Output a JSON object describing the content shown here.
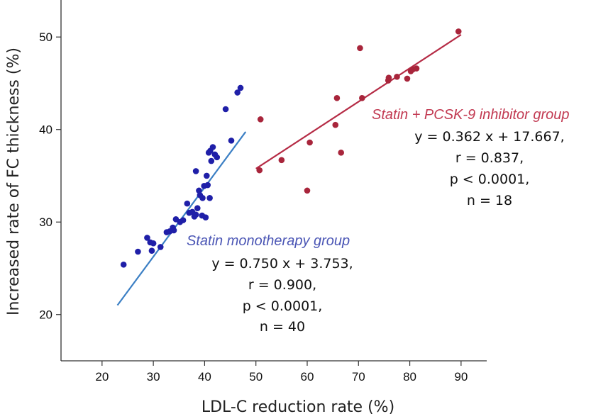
{
  "chart_data": {
    "type": "scatter",
    "xlabel": "LDL-C reduction rate (%)",
    "ylabel": "Increased rate of FC thickness (%)",
    "xlim": [
      12,
      95
    ],
    "ylim": [
      15,
      54
    ],
    "x_ticks": [
      20,
      30,
      40,
      50,
      60,
      70,
      80,
      90
    ],
    "y_ticks": [
      20,
      30,
      40,
      50
    ],
    "grid": false,
    "series": [
      {
        "name": "Statin monotherapy group",
        "color": "#1f1fa8",
        "line_color": "#3b7fc4",
        "fit": {
          "slope": 0.75,
          "intercept": 3.753,
          "x_range": [
            23,
            48
          ]
        },
        "stats": [
          "y = 0.750 x + 3.753,",
          "r = 0.900,",
          "p < 0.0001,",
          "n = 40"
        ],
        "points": [
          {
            "x": 24.2,
            "y": 25.4
          },
          {
            "x": 27.0,
            "y": 26.8
          },
          {
            "x": 28.8,
            "y": 28.3
          },
          {
            "x": 29.4,
            "y": 27.8
          },
          {
            "x": 29.7,
            "y": 26.9
          },
          {
            "x": 30.0,
            "y": 27.7
          },
          {
            "x": 31.4,
            "y": 27.3
          },
          {
            "x": 32.6,
            "y": 28.9
          },
          {
            "x": 33.2,
            "y": 29.0
          },
          {
            "x": 33.8,
            "y": 29.4
          },
          {
            "x": 34.4,
            "y": 30.3
          },
          {
            "x": 35.8,
            "y": 30.2
          },
          {
            "x": 36.6,
            "y": 32.0
          },
          {
            "x": 37.0,
            "y": 31.0
          },
          {
            "x": 37.6,
            "y": 31.1
          },
          {
            "x": 38.0,
            "y": 30.6
          },
          {
            "x": 38.3,
            "y": 30.8
          },
          {
            "x": 38.6,
            "y": 31.5
          },
          {
            "x": 38.3,
            "y": 35.5
          },
          {
            "x": 38.9,
            "y": 33.4
          },
          {
            "x": 39.1,
            "y": 32.9
          },
          {
            "x": 39.6,
            "y": 32.6
          },
          {
            "x": 39.9,
            "y": 33.9
          },
          {
            "x": 40.2,
            "y": 30.5
          },
          {
            "x": 40.6,
            "y": 34.0
          },
          {
            "x": 41.0,
            "y": 32.6
          },
          {
            "x": 40.4,
            "y": 35.0
          },
          {
            "x": 39.5,
            "y": 30.7
          },
          {
            "x": 40.8,
            "y": 37.5
          },
          {
            "x": 41.1,
            "y": 37.7
          },
          {
            "x": 41.6,
            "y": 38.1
          },
          {
            "x": 42.0,
            "y": 37.3
          },
          {
            "x": 42.4,
            "y": 37.0
          },
          {
            "x": 41.3,
            "y": 36.6
          },
          {
            "x": 44.1,
            "y": 42.2
          },
          {
            "x": 45.2,
            "y": 38.8
          },
          {
            "x": 46.4,
            "y": 44.0
          },
          {
            "x": 47.0,
            "y": 44.5
          },
          {
            "x": 35.2,
            "y": 30.0
          },
          {
            "x": 34.0,
            "y": 29.1
          }
        ]
      },
      {
        "name": "Statin + PCSK-9 inhibitor group",
        "color": "#a8253b",
        "line_color": "#b52b45",
        "fit": {
          "slope": 0.362,
          "intercept": 17.667,
          "x_range": [
            50,
            90
          ]
        },
        "stats": [
          "y = 0.362 x + 17.667,",
          "r = 0.837,",
          "p < 0.0001,",
          "n = 18"
        ],
        "points": [
          {
            "x": 50.7,
            "y": 35.6
          },
          {
            "x": 50.9,
            "y": 41.1
          },
          {
            "x": 55.0,
            "y": 36.7
          },
          {
            "x": 60.0,
            "y": 33.4
          },
          {
            "x": 60.5,
            "y": 38.6
          },
          {
            "x": 65.5,
            "y": 40.5
          },
          {
            "x": 65.8,
            "y": 43.4
          },
          {
            "x": 66.6,
            "y": 37.5
          },
          {
            "x": 70.3,
            "y": 48.8
          },
          {
            "x": 70.7,
            "y": 43.4
          },
          {
            "x": 75.8,
            "y": 45.3
          },
          {
            "x": 75.9,
            "y": 45.6
          },
          {
            "x": 77.5,
            "y": 45.7
          },
          {
            "x": 79.5,
            "y": 45.5
          },
          {
            "x": 80.2,
            "y": 46.3
          },
          {
            "x": 80.6,
            "y": 46.5
          },
          {
            "x": 81.3,
            "y": 46.6
          },
          {
            "x": 89.5,
            "y": 50.6
          }
        ]
      }
    ]
  }
}
